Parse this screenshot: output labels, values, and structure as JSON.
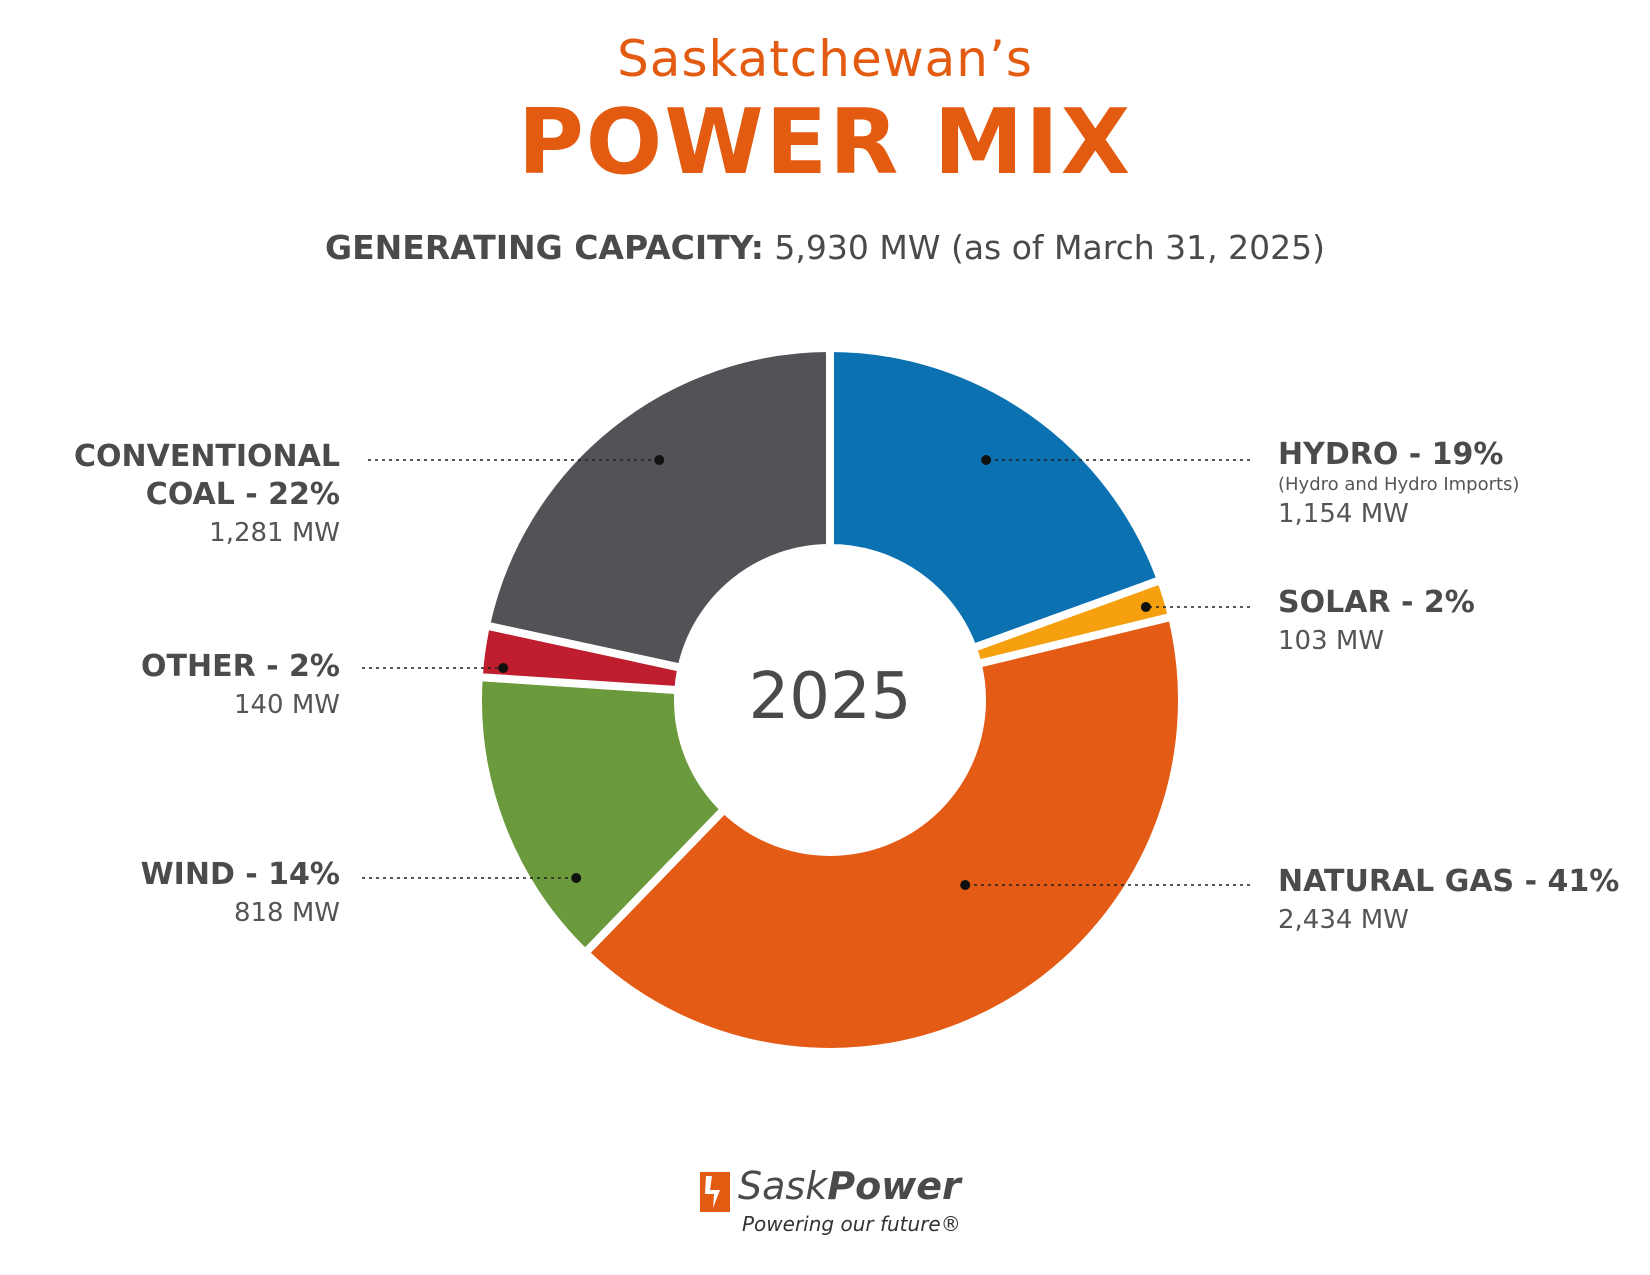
{
  "header": {
    "title_top": "Saskatchewan’s",
    "title_main": "POWER MIX",
    "subtitle_label": "GENERATING CAPACITY:",
    "subtitle_value": "5,930 MW (as of March 31, 2025)"
  },
  "colors": {
    "title": "#e35b11",
    "hydro": "#0b71b1",
    "solar": "#f6a00f",
    "natural_gas": "#e35b14",
    "wind": "#6b9a3d",
    "other": "#be1e2d",
    "conventional_coal": "#515357",
    "text": "#4b4b4b"
  },
  "chart_data": {
    "type": "pie",
    "center_label": "2025",
    "total_mw": 5930,
    "slices": [
      {
        "key": "hydro",
        "label": "HYDRO - 19%",
        "note": "(Hydro and Hydro Imports)",
        "mw_label": "1,154 MW",
        "mw": 1154,
        "percent": 19
      },
      {
        "key": "solar",
        "label": "SOLAR - 2%",
        "mw_label": "103 MW",
        "mw": 103,
        "percent": 2
      },
      {
        "key": "natural_gas",
        "label": "NATURAL GAS - 41%",
        "mw_label": "2,434 MW",
        "mw": 2434,
        "percent": 41
      },
      {
        "key": "wind",
        "label": "WIND - 14%",
        "mw_label": "818 MW",
        "mw": 818,
        "percent": 14
      },
      {
        "key": "other",
        "label": "OTHER - 2%",
        "mw_label": "140 MW",
        "mw": 140,
        "percent": 2
      },
      {
        "key": "conventional_coal",
        "label_line1": "CONVENTIONAL",
        "label_line2": "COAL - 22%",
        "mw_label": "1,281 MW",
        "mw": 1281,
        "percent": 22
      }
    ]
  },
  "logo": {
    "name_light": "Sask",
    "name_bold": "Power",
    "tagline": "Powering our future®"
  }
}
